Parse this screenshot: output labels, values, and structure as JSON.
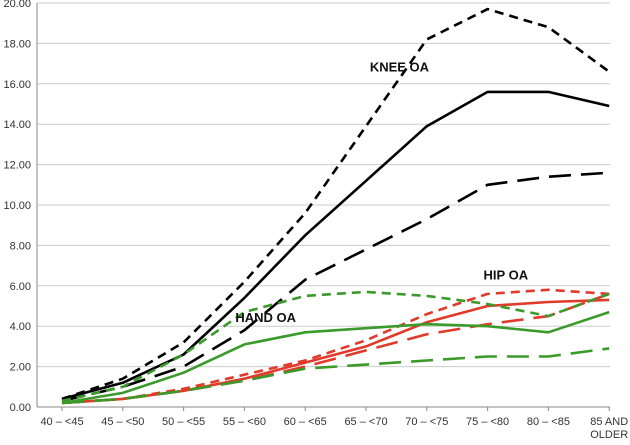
{
  "chart_data": {
    "type": "line",
    "title": "",
    "xlabel": "",
    "ylabel": "",
    "ylim": [
      0,
      20
    ],
    "y_ticks": [
      "0.00",
      "2.00",
      "4.00",
      "6.00",
      "8.00",
      "10.00",
      "12.00",
      "14.00",
      "16.00",
      "18.00",
      "20.00"
    ],
    "categories": [
      "40 – <45",
      "45 – <50",
      "50 – <55",
      "55 – <60",
      "60 – <65",
      "65 – <70",
      "70 – <75",
      "75 – <80",
      "80 – <85",
      "85 AND OLDER"
    ],
    "grid": true,
    "legend": "none",
    "annotations": [
      {
        "text": "KNEE OA",
        "x_index": 5.55,
        "y": 16.6
      },
      {
        "text": "HIP OA",
        "x_index": 7.3,
        "y": 6.3
      },
      {
        "text": "HAND OA",
        "x_index": 3.35,
        "y": 4.2
      }
    ],
    "series": [
      {
        "group": "knee",
        "style": "short-dash",
        "color": "#000000",
        "values": [
          0.4,
          1.4,
          3.2,
          6.2,
          9.6,
          13.9,
          18.2,
          19.7,
          18.8,
          16.6
        ]
      },
      {
        "group": "knee",
        "style": "solid",
        "color": "#000000",
        "values": [
          0.4,
          1.2,
          2.6,
          5.4,
          8.5,
          11.2,
          13.9,
          15.6,
          15.6,
          14.9
        ]
      },
      {
        "group": "knee",
        "style": "long-dash",
        "color": "#000000",
        "values": [
          0.3,
          1.0,
          2.0,
          3.8,
          6.3,
          7.8,
          9.3,
          11.0,
          11.4,
          11.6
        ]
      },
      {
        "group": "hip",
        "style": "short-dash",
        "color": "#e03a2a",
        "values": [
          0.2,
          0.4,
          0.9,
          1.6,
          2.3,
          3.3,
          4.6,
          5.6,
          5.8,
          5.6
        ]
      },
      {
        "group": "hip",
        "style": "solid",
        "color": "#e03a2a",
        "values": [
          0.2,
          0.4,
          0.8,
          1.4,
          2.2,
          3.0,
          4.2,
          5.0,
          5.2,
          5.3
        ]
      },
      {
        "group": "hip",
        "style": "long-dash",
        "color": "#e03a2a",
        "values": [
          0.2,
          0.4,
          0.8,
          1.3,
          2.0,
          2.8,
          3.6,
          4.1,
          4.5,
          5.6
        ]
      },
      {
        "group": "hand",
        "style": "short-dash",
        "color": "#3a9a2a",
        "values": [
          0.3,
          1.0,
          2.6,
          4.7,
          5.5,
          5.7,
          5.5,
          5.1,
          4.5,
          5.6
        ]
      },
      {
        "group": "hand",
        "style": "solid",
        "color": "#3a9a2a",
        "values": [
          0.2,
          0.7,
          1.7,
          3.1,
          3.7,
          3.9,
          4.1,
          4.0,
          3.7,
          4.7
        ]
      },
      {
        "group": "hand",
        "style": "long-dash",
        "color": "#3a9a2a",
        "values": [
          0.2,
          0.4,
          0.8,
          1.3,
          1.9,
          2.1,
          2.3,
          2.5,
          2.5,
          2.9
        ]
      }
    ]
  }
}
